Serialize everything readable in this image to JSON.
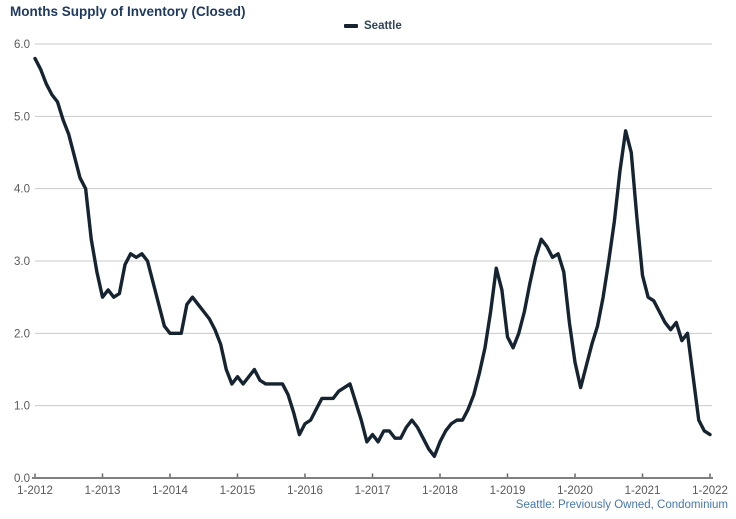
{
  "title": "Months Supply of Inventory (Closed)",
  "legend": {
    "label": "Seattle"
  },
  "footer": "Seattle: Previously Owned, Condominium",
  "colors": {
    "line": "#152430",
    "title": "#1f3a60",
    "legend_text": "#2f4558",
    "footer_text": "#4577b0",
    "axis_label": "#595959",
    "gridline": "#c9c9c9",
    "axis_line": "#7f7f7f",
    "tick": "#666666",
    "background": "#ffffff"
  },
  "chart_data": {
    "type": "line",
    "title": "Months Supply of Inventory (Closed)",
    "xlabel": "",
    "ylabel": "",
    "x_tick_labels": [
      "1-2012",
      "1-2013",
      "1-2014",
      "1-2015",
      "1-2016",
      "1-2017",
      "1-2018",
      "1-2019",
      "1-2020",
      "1-2021",
      "1-2022"
    ],
    "y_tick_labels": [
      "0.0",
      "1.0",
      "2.0",
      "3.0",
      "4.0",
      "5.0",
      "6.0"
    ],
    "ylim": [
      0,
      6
    ],
    "grid": "horizontal",
    "legend_position": "top-center",
    "x_frequency": "monthly",
    "x_range": [
      "1-2012",
      "1-2022"
    ],
    "series": [
      {
        "name": "Seattle",
        "values": [
          5.8,
          5.65,
          5.45,
          5.3,
          5.2,
          4.95,
          4.75,
          4.45,
          4.15,
          4.0,
          3.3,
          2.85,
          2.5,
          2.6,
          2.5,
          2.55,
          2.95,
          3.1,
          3.05,
          3.1,
          3.0,
          2.7,
          2.4,
          2.1,
          2.0,
          2.0,
          2.0,
          2.4,
          2.5,
          2.4,
          2.3,
          2.2,
          2.05,
          1.85,
          1.5,
          1.3,
          1.4,
          1.3,
          1.4,
          1.5,
          1.35,
          1.3,
          1.3,
          1.3,
          1.3,
          1.15,
          0.9,
          0.6,
          0.75,
          0.8,
          0.95,
          1.1,
          1.1,
          1.1,
          1.2,
          1.25,
          1.3,
          1.05,
          0.8,
          0.5,
          0.6,
          0.5,
          0.65,
          0.65,
          0.55,
          0.55,
          0.7,
          0.8,
          0.7,
          0.55,
          0.4,
          0.3,
          0.5,
          0.65,
          0.75,
          0.8,
          0.8,
          0.95,
          1.15,
          1.45,
          1.8,
          2.3,
          2.9,
          2.6,
          1.95,
          1.8,
          2.0,
          2.3,
          2.7,
          3.05,
          3.3,
          3.2,
          3.05,
          3.1,
          2.85,
          2.15,
          1.6,
          1.25,
          1.55,
          1.85,
          2.1,
          2.5,
          3.0,
          3.55,
          4.25,
          4.8,
          4.5,
          3.6,
          2.8,
          2.5,
          2.45,
          2.3,
          2.15,
          2.05,
          2.15,
          1.9,
          2.0,
          1.4,
          0.8,
          0.65,
          0.6
        ]
      }
    ]
  }
}
